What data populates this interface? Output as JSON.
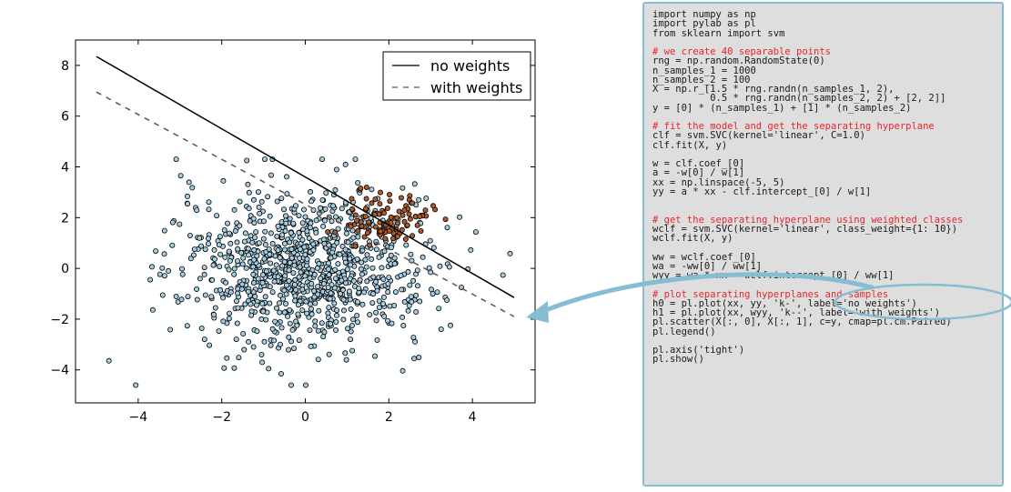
{
  "chart_data": {
    "type": "scatter",
    "title": "",
    "xlabel": "",
    "ylabel": "",
    "xlim": [
      -5.5,
      5.5
    ],
    "ylim": [
      -5.3,
      9.0
    ],
    "xticks": [
      -4,
      -2,
      0,
      2,
      4
    ],
    "yticks": [
      -4,
      -2,
      0,
      2,
      4,
      6,
      8
    ],
    "xtick_labels": [
      "−4",
      "−2",
      "0",
      "2",
      "4"
    ],
    "ytick_labels": [
      "−4",
      "−2",
      "0",
      "2",
      "4",
      "6",
      "8"
    ],
    "grid": false,
    "legend_position": "top-right",
    "legend": [
      {
        "label": "no weights",
        "style": "solid"
      },
      {
        "label": "with weights",
        "style": "dashed"
      }
    ],
    "lines": [
      {
        "name": "no weights",
        "style": "solid",
        "color": "#000000",
        "x": [
          -5.0,
          5.0
        ],
        "y": [
          8.35,
          -1.15
        ]
      },
      {
        "name": "with weights",
        "style": "dashed",
        "color": "#555555",
        "x": [
          -5.0,
          5.0
        ],
        "y": [
          6.95,
          -1.9
        ]
      }
    ],
    "clusters": [
      {
        "class": 0,
        "n": 1000,
        "color": "#a6cee3",
        "center": [
          0,
          0
        ],
        "spread": 1.5
      },
      {
        "class": 1,
        "n": 100,
        "color": "#b15928",
        "center": [
          2,
          2
        ],
        "spread": 0.5
      }
    ]
  },
  "code": {
    "lines": [
      {
        "text": "import numpy as np",
        "comment": false
      },
      {
        "text": "import pylab as pl",
        "comment": false
      },
      {
        "text": "from sklearn import svm",
        "comment": false
      },
      {
        "text": "",
        "comment": false
      },
      {
        "text": "# we create 40 separable points",
        "comment": true
      },
      {
        "text": "rng = np.random.RandomState(0)",
        "comment": false
      },
      {
        "text": "n_samples_1 = 1000",
        "comment": false
      },
      {
        "text": "n_samples_2 = 100",
        "comment": false
      },
      {
        "text": "X = np.r_[1.5 * rng.randn(n_samples_1, 2),",
        "comment": false
      },
      {
        "text": "          0.5 * rng.randn(n_samples_2, 2) + [2, 2]]",
        "comment": false
      },
      {
        "text": "y = [0] * (n_samples_1) + [1] * (n_samples_2)",
        "comment": false
      },
      {
        "text": "",
        "comment": false
      },
      {
        "text": "# fit the model and get the separating hyperplane",
        "comment": true
      },
      {
        "text": "clf = svm.SVC(kernel='linear', C=1.0)",
        "comment": false
      },
      {
        "text": "clf.fit(X, y)",
        "comment": false
      },
      {
        "text": "",
        "comment": false
      },
      {
        "text": "w = clf.coef_[0]",
        "comment": false
      },
      {
        "text": "a = -w[0] / w[1]",
        "comment": false
      },
      {
        "text": "xx = np.linspace(-5, 5)",
        "comment": false
      },
      {
        "text": "yy = a * xx - clf.intercept_[0] / w[1]",
        "comment": false
      },
      {
        "text": "",
        "comment": false
      },
      {
        "text": "",
        "comment": false
      },
      {
        "text": "# get the separating hyperplane using weighted classes",
        "comment": true
      },
      {
        "text": "wclf = svm.SVC(kernel='linear', class_weight={1: 10})",
        "comment": false
      },
      {
        "text": "wclf.fit(X, y)",
        "comment": false
      },
      {
        "text": "",
        "comment": false
      },
      {
        "text": "ww = wclf.coef_[0]",
        "comment": false
      },
      {
        "text": "wa = -ww[0] / ww[1]",
        "comment": false
      },
      {
        "text": "wyy = wa * xx - wclf.intercept_[0] / ww[1]",
        "comment": false
      },
      {
        "text": "",
        "comment": false
      },
      {
        "text": "# plot separating hyperplanes and samples",
        "comment": true
      },
      {
        "text": "h0 = pl.plot(xx, yy, 'k-', label='no weights')",
        "comment": false
      },
      {
        "text": "h1 = pl.plot(xx, wyy, 'k--', label='with weights')",
        "comment": false
      },
      {
        "text": "pl.scatter(X[:, 0], X[:, 1], c=y, cmap=pl.cm.Paired)",
        "comment": false
      },
      {
        "text": "pl.legend()",
        "comment": false
      },
      {
        "text": "",
        "comment": false
      },
      {
        "text": "pl.axis('tight')",
        "comment": false
      },
      {
        "text": "pl.show()",
        "comment": false
      }
    ]
  },
  "colors": {
    "annotation": "#86bdd3",
    "panel_background": "#dedede",
    "comment_text": "#e8262a"
  }
}
